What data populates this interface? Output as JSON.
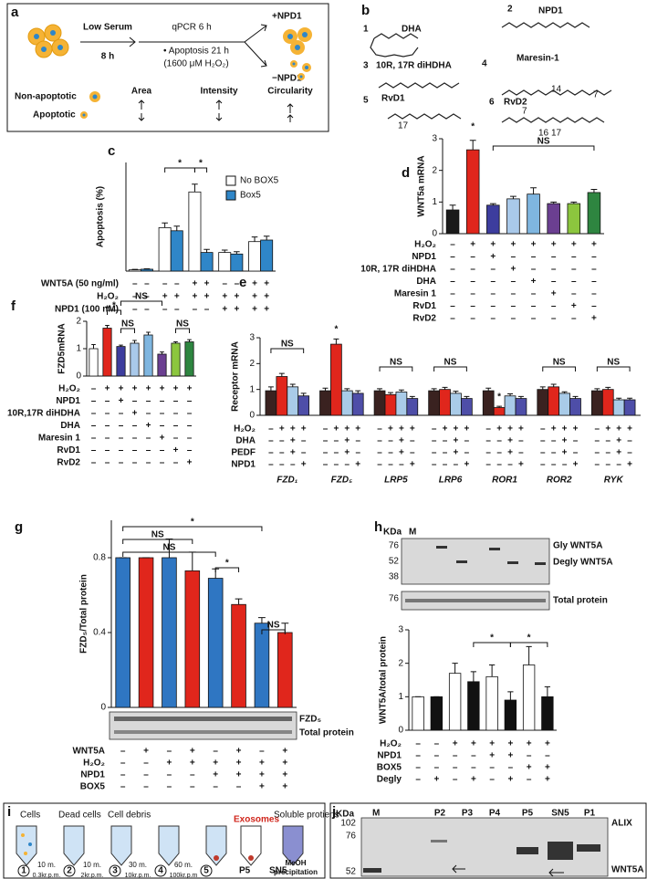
{
  "panel_labels": [
    "a",
    "b",
    "c",
    "d",
    "e",
    "f",
    "g",
    "h",
    "i",
    "j"
  ],
  "panel_a": {
    "step1": "Low Serum",
    "step1_time": "8 h",
    "step2": [
      "qPCR 6 h",
      "• Apoptosis 21 h",
      "(1600 μM H₂O₂)"
    ],
    "outcome_plus": "+NPD1",
    "outcome_minus": "−NPD1",
    "legend": [
      "Non-apoptotic",
      "Apoptotic"
    ],
    "features": [
      "Area",
      "Intensity",
      "Circularity"
    ]
  },
  "panel_b": {
    "molecules": [
      {
        "number": "1",
        "name": "DHA"
      },
      {
        "number": "2",
        "name": "NPD1"
      },
      {
        "number": "3",
        "name": "10R, 17R diHDHA"
      },
      {
        "number": "4",
        "name": "Maresin-1"
      },
      {
        "number": "5",
        "name": "RvD1"
      },
      {
        "number": "6",
        "name": "RvD2"
      }
    ],
    "stereo_labels": [
      "14",
      "7",
      "17",
      "7",
      "16",
      "17"
    ]
  },
  "chart_data": [
    {
      "type": "bar",
      "ylabel": "Apoptosis (%)",
      "categories": [
        null,
        null,
        null,
        null,
        null
      ],
      "series": [
        {
          "name": "No BOX5",
          "color": "#ffffff",
          "values": [
            0.8,
            28,
            51,
            12,
            19
          ],
          "errors": [
            0.3,
            3,
            5,
            1.5,
            3
          ]
        },
        {
          "name": "Box5",
          "color": "#2f86c8",
          "values": [
            1.2,
            26,
            12,
            11,
            20
          ],
          "errors": [
            0.3,
            3,
            2,
            1.5,
            2.5
          ]
        }
      ],
      "ylim": [
        0,
        70
      ],
      "conditions": [
        {
          "label": "WNT5A (50 ng/ml)",
          "marks": [
            "–",
            "–",
            "–",
            "–",
            "+",
            "+",
            "–",
            "–",
            "+",
            "+"
          ]
        },
        {
          "label": "H₂O₂",
          "marks": [
            "–",
            "–",
            "+",
            "+",
            "+",
            "+",
            "+",
            "+",
            "+",
            "+"
          ]
        },
        {
          "label": "NPD1 (100 nM)",
          "marks": [
            "–",
            "–",
            "–",
            "–",
            "–",
            "–",
            "+",
            "+",
            "+",
            "+"
          ]
        }
      ],
      "annotations": [
        "*",
        "*"
      ]
    },
    {
      "type": "bar",
      "ylabel": "WNT5a mRNA",
      "values": [
        0.75,
        2.65,
        0.9,
        1.1,
        1.25,
        0.95,
        0.95,
        1.3
      ],
      "errors": [
        0.15,
        0.3,
        0.05,
        0.08,
        0.2,
        0.05,
        0.05,
        0.1
      ],
      "colors": [
        "#1a1a1a",
        "#e0261c",
        "#3d3d9e",
        "#a9c9ea",
        "#7fb6e0",
        "#6b3f91",
        "#8cc63e",
        "#2e8540"
      ],
      "ylim": [
        0,
        3
      ],
      "yticks": [
        0,
        1,
        2,
        3
      ],
      "conditions": [
        {
          "label": "H₂O₂",
          "marks": [
            "–",
            "+",
            "+",
            "+",
            "+",
            "+",
            "+",
            "+"
          ]
        },
        {
          "label": "NPD1",
          "marks": [
            "–",
            "–",
            "+",
            "–",
            "–",
            "–",
            "–",
            "–"
          ]
        },
        {
          "label": "10R, 17R diHDHA",
          "marks": [
            "–",
            "–",
            "–",
            "+",
            "–",
            "–",
            "–",
            "–"
          ]
        },
        {
          "label": "DHA",
          "marks": [
            "–",
            "–",
            "–",
            "–",
            "+",
            "–",
            "–",
            "–"
          ]
        },
        {
          "label": "Maresin 1",
          "marks": [
            "–",
            "–",
            "–",
            "–",
            "–",
            "+",
            "–",
            "–"
          ]
        },
        {
          "label": "RvD1",
          "marks": [
            "–",
            "–",
            "–",
            "–",
            "–",
            "–",
            "+",
            "–"
          ]
        },
        {
          "label": "RvD2",
          "marks": [
            "–",
            "–",
            "–",
            "–",
            "–",
            "–",
            "–",
            "+"
          ]
        }
      ],
      "annotations": [
        "*",
        "NS"
      ]
    },
    {
      "type": "bar",
      "ylabel": "FZD5mRNA",
      "values": [
        1.0,
        1.75,
        1.08,
        1.2,
        1.5,
        0.8,
        1.2,
        1.25
      ],
      "errors": [
        0.15,
        0.1,
        0.05,
        0.1,
        0.1,
        0.08,
        0.05,
        0.08
      ],
      "colors": [
        "#ffffff",
        "#e0261c",
        "#3d3d9e",
        "#a9c9ea",
        "#7fb6e0",
        "#6b3f91",
        "#8cc63e",
        "#2e8540"
      ],
      "ylim": [
        0,
        2
      ],
      "yticks": [
        0,
        1,
        2
      ],
      "conditions": [
        {
          "label": "H₂O₂",
          "marks": [
            "–",
            "+",
            "+",
            "+",
            "+",
            "+",
            "+",
            "+"
          ]
        },
        {
          "label": "NPD1",
          "marks": [
            "–",
            "–",
            "+",
            "–",
            "–",
            "–",
            "–",
            "–"
          ]
        },
        {
          "label": "10R,17R diHDHA",
          "marks": [
            "–",
            "–",
            "–",
            "+",
            "–",
            "–",
            "–",
            "–"
          ]
        },
        {
          "label": "DHA",
          "marks": [
            "–",
            "–",
            "–",
            "–",
            "+",
            "–",
            "–",
            "–"
          ]
        },
        {
          "label": "Maresin 1",
          "marks": [
            "–",
            "–",
            "–",
            "–",
            "–",
            "+",
            "–",
            "–"
          ]
        },
        {
          "label": "RvD1",
          "marks": [
            "–",
            "–",
            "–",
            "–",
            "–",
            "–",
            "+",
            "–"
          ]
        },
        {
          "label": "RvD2",
          "marks": [
            "–",
            "–",
            "–",
            "–",
            "–",
            "–",
            "–",
            "+"
          ]
        }
      ],
      "annotations": [
        "*",
        "*",
        "NS",
        "NS",
        "NS"
      ]
    },
    {
      "type": "bar",
      "ylabel": "Receptor mRNA",
      "categories": [
        "FZD₁",
        "FZD₅",
        "LRP5",
        "LRP6",
        "ROR1",
        "ROR2",
        "RYK"
      ],
      "series": [
        {
          "color": "#3a2220",
          "values": [
            0.95,
            0.95,
            0.95,
            0.95,
            0.95,
            1.0,
            0.95
          ],
          "errors": [
            0.15,
            0.1,
            0.08,
            0.08,
            0.1,
            0.1,
            0.08
          ]
        },
        {
          "color": "#e0261c",
          "values": [
            1.5,
            2.75,
            0.8,
            1.0,
            0.3,
            1.1,
            1.0
          ],
          "errors": [
            0.12,
            0.2,
            0.08,
            0.08,
            0.05,
            0.1,
            0.08
          ]
        },
        {
          "color": "#a9cbe8",
          "values": [
            1.1,
            0.95,
            0.9,
            0.85,
            0.75,
            0.85,
            0.6
          ],
          "errors": [
            0.1,
            0.08,
            0.08,
            0.08,
            0.08,
            0.06,
            0.06
          ]
        },
        {
          "color": "#4e4ea8",
          "values": [
            0.75,
            0.85,
            0.65,
            0.65,
            0.65,
            0.65,
            0.6
          ],
          "errors": [
            0.1,
            0.1,
            0.08,
            0.08,
            0.08,
            0.08,
            0.06
          ]
        }
      ],
      "ylim": [
        0,
        3
      ],
      "yticks": [
        0,
        1,
        2,
        3
      ],
      "conditions": [
        {
          "label": "H₂O₂",
          "marks": [
            "–",
            "+",
            "+",
            "+",
            "–",
            "+",
            "+",
            "+",
            "–",
            "+",
            "+",
            "+",
            "–",
            "+",
            "+",
            "+",
            "–",
            "+",
            "+",
            "+",
            "–",
            "+",
            "+",
            "+",
            "–",
            "+",
            "+",
            "+"
          ]
        },
        {
          "label": "DHA",
          "marks": [
            "–",
            "–",
            "+",
            "–",
            "–",
            "–",
            "+",
            "–",
            "–",
            "–",
            "+",
            "–",
            "–",
            "–",
            "+",
            "–",
            "–",
            "–",
            "+",
            "–",
            "–",
            "–",
            "+",
            "–",
            "–",
            "–",
            "+",
            "–"
          ]
        },
        {
          "label": "PEDF",
          "marks": [
            "–",
            "–",
            "+",
            "–",
            "–",
            "–",
            "+",
            "–",
            "–",
            "–",
            "+",
            "–",
            "–",
            "–",
            "+",
            "–",
            "–",
            "–",
            "+",
            "–",
            "–",
            "–",
            "+",
            "–",
            "–",
            "–",
            "+",
            "–"
          ]
        },
        {
          "label": "NPD1",
          "marks": [
            "–",
            "–",
            "–",
            "+",
            "–",
            "–",
            "–",
            "+",
            "–",
            "–",
            "–",
            "+",
            "–",
            "–",
            "–",
            "+",
            "–",
            "–",
            "–",
            "+",
            "–",
            "–",
            "–",
            "+",
            "–",
            "–",
            "–",
            "+"
          ]
        }
      ],
      "annotations": [
        "NS",
        "*",
        "NS",
        "NS",
        "*",
        "NS",
        "NS"
      ]
    },
    {
      "type": "bar",
      "ylabel": "FZD₅/Total protein",
      "values": [
        0.8,
        0.8,
        0.8,
        0.73,
        0.69,
        0.55,
        0.45,
        0.4
      ],
      "errors": [
        0,
        0,
        0.1,
        0.1,
        0.05,
        0.03,
        0.03,
        0.05
      ],
      "colors": [
        "#2f76c2",
        "#e0261c",
        "#2f76c2",
        "#e0261c",
        "#2f76c2",
        "#e0261c",
        "#2f76c2",
        "#e0261c"
      ],
      "ylim": [
        0,
        1
      ],
      "yticks": [
        0,
        0.4,
        0.8
      ],
      "conditions": [
        {
          "label": "WNT5A",
          "marks": [
            "–",
            "+",
            "–",
            "+",
            "–",
            "+",
            "–",
            "+"
          ]
        },
        {
          "label": "H₂O₂",
          "marks": [
            "–",
            "–",
            "+",
            "+",
            "+",
            "+",
            "+",
            "+"
          ]
        },
        {
          "label": "NPD1",
          "marks": [
            "–",
            "–",
            "–",
            "–",
            "+",
            "+",
            "+",
            "+"
          ]
        },
        {
          "label": "BOX5",
          "marks": [
            "–",
            "–",
            "–",
            "–",
            "–",
            "–",
            "+",
            "+"
          ]
        }
      ],
      "annotations": [
        "NS",
        "NS",
        "*",
        "*",
        "NS"
      ]
    },
    {
      "type": "bar",
      "ylabel": "WNT5A/total protein",
      "values": [
        1.0,
        1.0,
        1.7,
        1.45,
        1.6,
        0.9,
        1.95,
        1.0
      ],
      "errors": [
        0,
        0,
        0.3,
        0.3,
        0.35,
        0.25,
        0.55,
        0.3
      ],
      "colors": [
        "#ffffff",
        "#111111",
        "#ffffff",
        "#111111",
        "#ffffff",
        "#111111",
        "#ffffff",
        "#111111"
      ],
      "ylim": [
        0,
        3
      ],
      "yticks": [
        0,
        1,
        2,
        3
      ],
      "conditions": [
        {
          "label": "H₂O₂",
          "marks": [
            "–",
            "–",
            "+",
            "+",
            "+",
            "+",
            "+",
            "+"
          ]
        },
        {
          "label": "NPD1",
          "marks": [
            "–",
            "–",
            "–",
            "–",
            "+",
            "+",
            "–",
            "–"
          ]
        },
        {
          "label": "BOX5",
          "marks": [
            "–",
            "–",
            "–",
            "–",
            "–",
            "–",
            "+",
            "+"
          ]
        },
        {
          "label": "Degly",
          "marks": [
            "–",
            "+",
            "–",
            "+",
            "–",
            "+",
            "–",
            "+"
          ]
        }
      ],
      "annotations": [
        "*",
        "*"
      ]
    }
  ],
  "panel_g_blot": {
    "bands": [
      "FZD₅",
      "Total protein"
    ]
  },
  "panel_h_blot": {
    "unit": "KDa",
    "marker": "M",
    "sizes": [
      "76",
      "52",
      "38"
    ],
    "bands": [
      "Gly WNT5A",
      "Degly WNT5A"
    ],
    "total_size": "76",
    "total": "Total protein"
  },
  "panel_i": {
    "stages": [
      "Cells",
      "Dead cells",
      "Cell debris",
      "Exosomes",
      "Soluble protiens"
    ],
    "steps": [
      "1",
      "2",
      "3",
      "4",
      "5"
    ],
    "fractions": [
      "P5",
      "SN5"
    ],
    "times": [
      "10 m.",
      "10 m.",
      "30 m.",
      "60 m."
    ],
    "speeds": [
      "0.3kr.p.m.",
      "2kr.p.m.",
      "10kr.p.m.",
      "100kr.p.m"
    ],
    "note": [
      "MeOH",
      "precipitation"
    ]
  },
  "panel_j": {
    "unit": "KDa",
    "marker": "M",
    "sizes": [
      "102",
      "76",
      "52"
    ],
    "lanes": [
      "P2",
      "P3",
      "P4",
      "P5",
      "SN5",
      "P1"
    ],
    "bands": [
      "ALIX",
      "WNT5A"
    ]
  }
}
